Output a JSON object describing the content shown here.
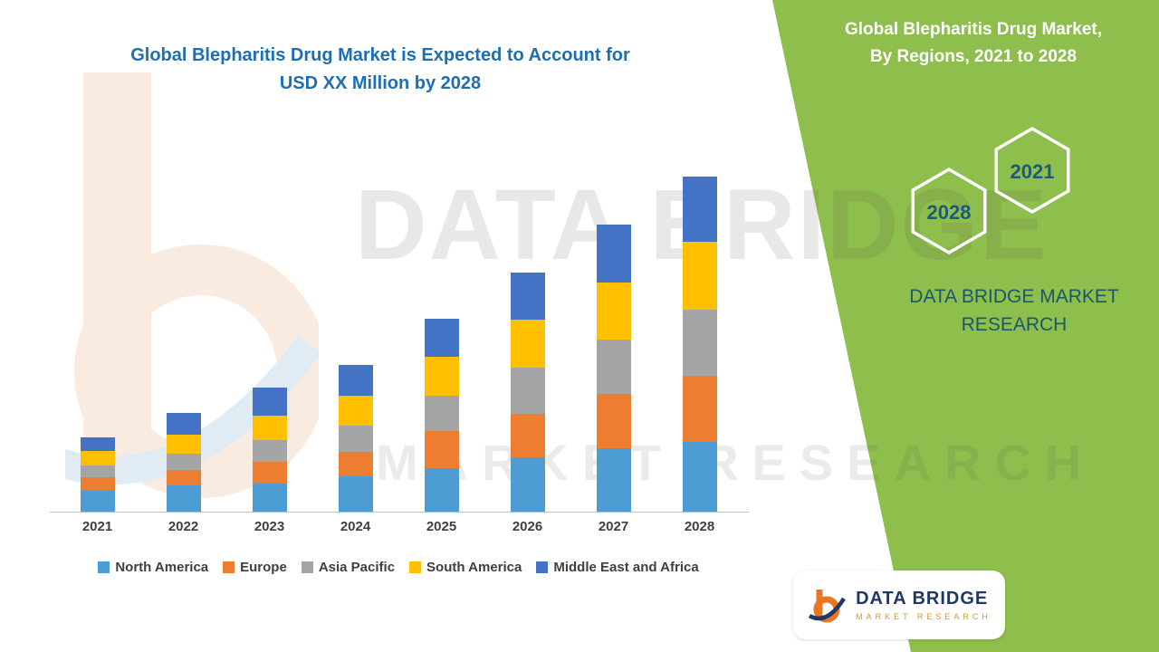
{
  "header": {
    "title_line1": "Global Blepharitis Drug Market is Expected to Account for",
    "title_line2": "USD XX Million by 2028"
  },
  "right_panel": {
    "title_line1": "Global Blepharitis Drug Market,",
    "title_line2": "By Regions, 2021 to 2028",
    "hexagons": [
      {
        "label": "2028"
      },
      {
        "label": "2021"
      }
    ],
    "brand_line1": "DATA BRIDGE MARKET",
    "brand_line2": "RESEARCH"
  },
  "watermark": {
    "line1": "DATA BRIDGE",
    "line2": "MARKET RESEARCH"
  },
  "logo_badge": {
    "name": "DATA BRIDGE",
    "subtitle": "MARKET RESEARCH"
  },
  "colors": {
    "green_panel": "#8EBE4B",
    "title_blue": "#1E6FB2",
    "hex_year_text": "#1E5B7B",
    "brand_text": "#1B586E",
    "axis_text": "#3F3F3F",
    "logo_navy": "#1F3864",
    "logo_gold": "#C79B3B"
  },
  "chart_data": {
    "type": "bar",
    "stacked": true,
    "title": "Global Blepharitis Drug Market is Expected to Account for USD XX Million by 2028",
    "categories": [
      "2021",
      "2022",
      "2023",
      "2024",
      "2025",
      "2026",
      "2027",
      "2028"
    ],
    "series": [
      {
        "name": "North America",
        "color": "#4E9CD4",
        "values": [
          24,
          30,
          32,
          40,
          50,
          62,
          72,
          80
        ]
      },
      {
        "name": "Europe",
        "color": "#ED7D31",
        "values": [
          15,
          18,
          25,
          28,
          42,
          50,
          62,
          75
        ]
      },
      {
        "name": "Asia Pacific",
        "color": "#A5A5A5",
        "values": [
          14,
          18,
          25,
          30,
          40,
          52,
          62,
          75
        ]
      },
      {
        "name": "South America",
        "color": "#FFC000",
        "values": [
          16,
          22,
          28,
          34,
          45,
          55,
          65,
          78
        ]
      },
      {
        "name": "Middle East and Africa",
        "color": "#4472C4",
        "values": [
          16,
          25,
          32,
          36,
          43,
          54,
          67,
          74
        ]
      }
    ],
    "xlabel": "",
    "ylabel": "",
    "ylim": [
      0,
      400
    ],
    "y_axis_visible": false,
    "gridlines": false,
    "legend_position": "bottom",
    "note": "No y-axis scale shown in figure; values estimated from relative bar heights"
  }
}
